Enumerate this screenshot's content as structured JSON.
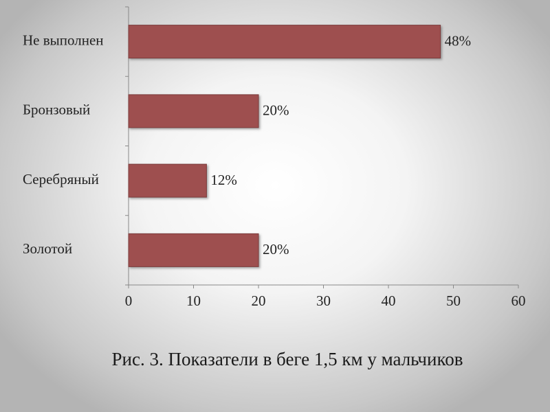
{
  "chart_data": {
    "type": "bar",
    "orientation": "horizontal",
    "categories": [
      "Не выполнен",
      "Бронзовый",
      "Серебряный",
      "Золотой"
    ],
    "values": [
      48,
      20,
      12,
      20
    ],
    "value_labels": [
      "48%",
      "20%",
      "12%",
      "20%"
    ],
    "color": "#9e4f4f",
    "xlim": [
      0,
      60
    ],
    "xticks": [
      0,
      10,
      20,
      30,
      40,
      50,
      60
    ],
    "grid": false,
    "caption": "Рис. 3. Показатели в беге 1,5 км у мальчиков"
  }
}
